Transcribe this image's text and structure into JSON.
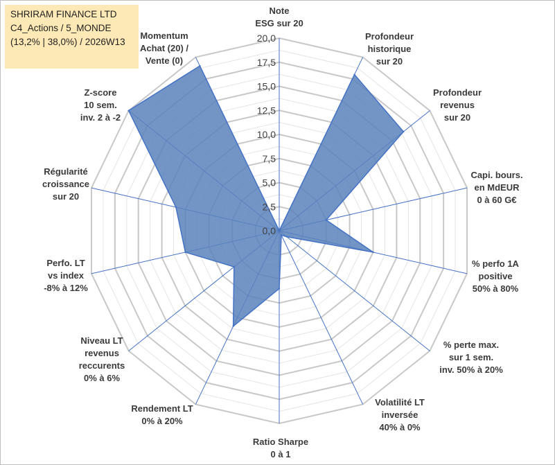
{
  "title_box": {
    "line1": "SHRIRAM FINANCE LTD",
    "line2": "C4_Actions / 5_MONDE",
    "line3": "(13,2% | 38,0%) / 2026W13"
  },
  "colors": {
    "fill": "#5b83bc",
    "stroke": "#4472c4",
    "grid_major": "#c8c8c8",
    "grid_minor": "#e4e4e4",
    "title_bg": "#fde9b6"
  },
  "chart_data": {
    "type": "radar",
    "r_range": [
      0,
      20
    ],
    "tick_labels": [
      "0,0",
      "2,5",
      "5,0",
      "7,5",
      "10,0",
      "12,5",
      "15,0",
      "17,5",
      "20,0"
    ],
    "categories": [
      [
        "Note",
        "ESG sur 20"
      ],
      [
        "Profondeur",
        "historique",
        "sur 20"
      ],
      [
        "Profondeur",
        "revenus",
        "sur 20"
      ],
      [
        "Capi. bours.",
        "en MdEUR",
        "0 à 60 G€"
      ],
      [
        "% perfo 1A",
        "positive",
        "50% à 80%"
      ],
      [
        "% perte max.",
        "sur 1 sem.",
        "inv. 50% à 20%"
      ],
      [
        "Volatilité LT",
        "inversée",
        "40% à 0%"
      ],
      [
        "Ratio Sharpe",
        "0 à 1"
      ],
      [
        "Rendement LT",
        "0% à 20%"
      ],
      [
        "Niveau LT",
        "revenus",
        "reccurents",
        "0% à 6%"
      ],
      [
        "Perfo. LT",
        "vs index",
        "-8% à 12%"
      ],
      [
        "Régularité",
        "croissance",
        "sur 20"
      ],
      [
        "Z-score",
        "10 sem.",
        "inv. 2 à -2"
      ],
      [
        "Momentum",
        "Achat (20) /",
        "Vente (0)"
      ]
    ],
    "series": [
      {
        "name": "SHRIRAM FINANCE LTD",
        "values": [
          0,
          18,
          16.5,
          5,
          10,
          1,
          0.5,
          6,
          11,
          6,
          10,
          11,
          20,
          19
        ]
      }
    ]
  }
}
